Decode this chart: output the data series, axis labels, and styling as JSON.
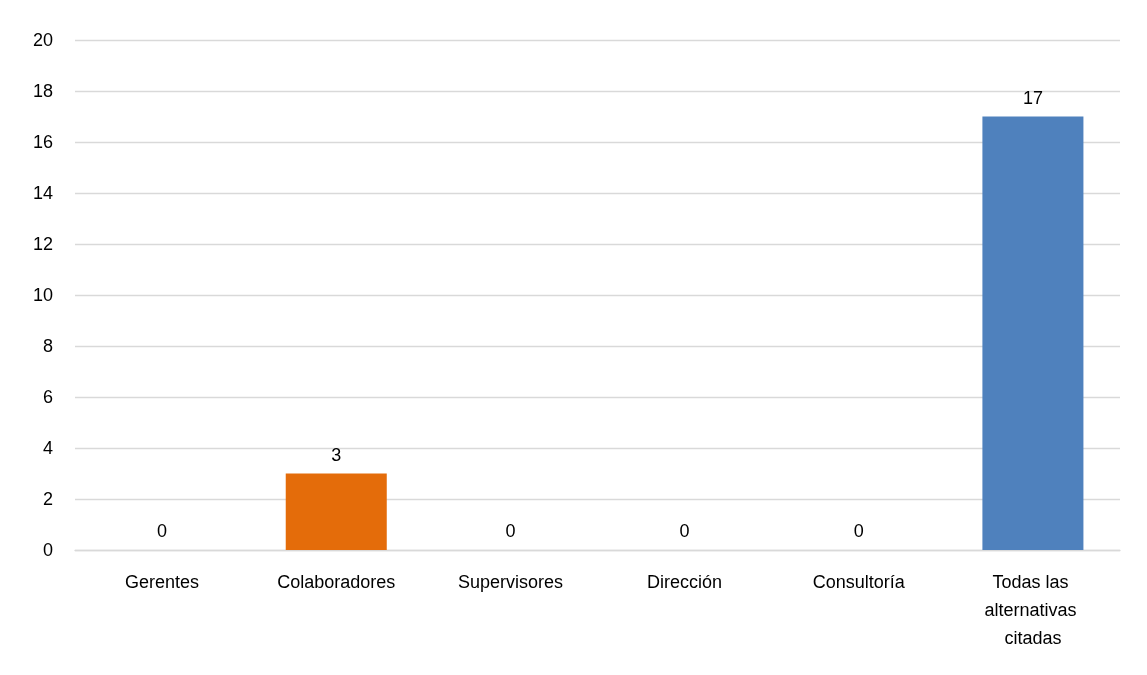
{
  "chart_data": {
    "type": "bar",
    "categories": [
      "Gerentes",
      "Colaboradores",
      "Supervisores",
      "Dirección",
      "Consultoría",
      "Todas las alternativas citadas"
    ],
    "values": [
      0,
      3,
      0,
      0,
      0,
      17
    ],
    "colors": [
      "#4f81bd",
      "#e46c0a",
      "#4f81bd",
      "#4f81bd",
      "#4f81bd",
      "#4f81bd"
    ],
    "ylim": [
      0,
      20
    ],
    "yticks": [
      0,
      2,
      4,
      6,
      8,
      10,
      12,
      14,
      16,
      18,
      20
    ],
    "grid": "y",
    "data_labels": true
  }
}
